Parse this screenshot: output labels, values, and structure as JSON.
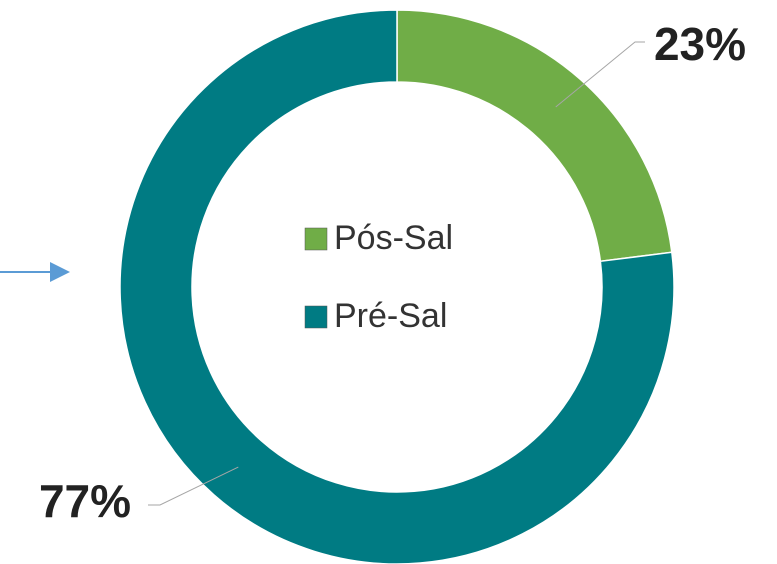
{
  "chart_data": {
    "type": "doughnut",
    "categories": [
      "Pós-Sal",
      "Pré-Sal"
    ],
    "values": [
      23,
      77
    ],
    "value_labels": [
      "23%",
      "77%"
    ],
    "colors": [
      "#70ad47",
      "#007b83"
    ],
    "legend": "center"
  }
}
